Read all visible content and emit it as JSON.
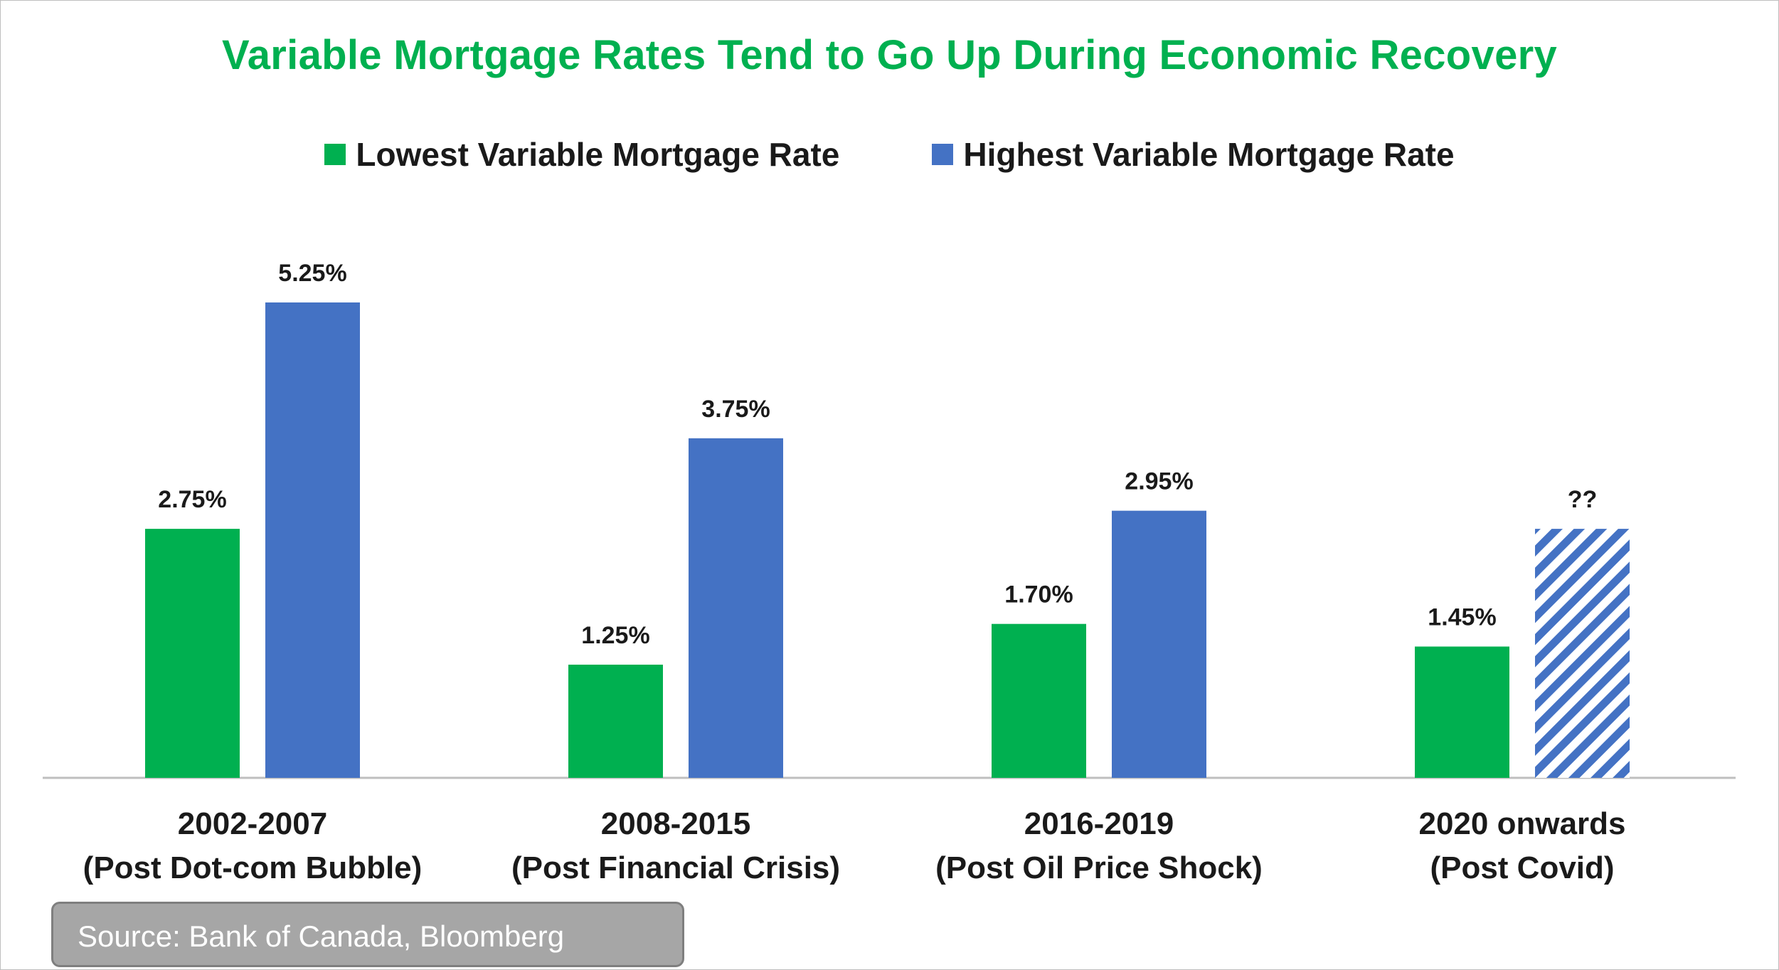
{
  "chart_data": {
    "type": "bar",
    "title": "Variable Mortgage Rates Tend to Go Up During Economic Recovery",
    "categories": [
      [
        "2002-2007",
        "(Post Dot-com Bubble)"
      ],
      [
        "2008-2015",
        "(Post Financial Crisis)"
      ],
      [
        "2016-2019",
        "(Post Oil Price Shock)"
      ],
      [
        "2020 onwards",
        "(Post Covid)"
      ]
    ],
    "series": [
      {
        "name": "Lowest Variable Mortgage Rate",
        "color": "#00b050",
        "values": [
          2.75,
          1.25,
          1.7,
          1.45
        ],
        "labels": [
          "2.75%",
          "1.25%",
          "1.70%",
          "1.45%"
        ]
      },
      {
        "name": "Highest Variable Mortgage Rate",
        "color": "#4472c4",
        "values": [
          5.25,
          3.75,
          2.95,
          2.75
        ],
        "labels": [
          "5.25%",
          "3.75%",
          "2.95%",
          "??"
        ],
        "hatched": [
          false,
          false,
          false,
          true
        ]
      }
    ],
    "ylim": [
      0,
      5.25
    ],
    "grid": false,
    "legend_position": "top"
  },
  "source": "Source: Bank of Canada, Bloomberg"
}
